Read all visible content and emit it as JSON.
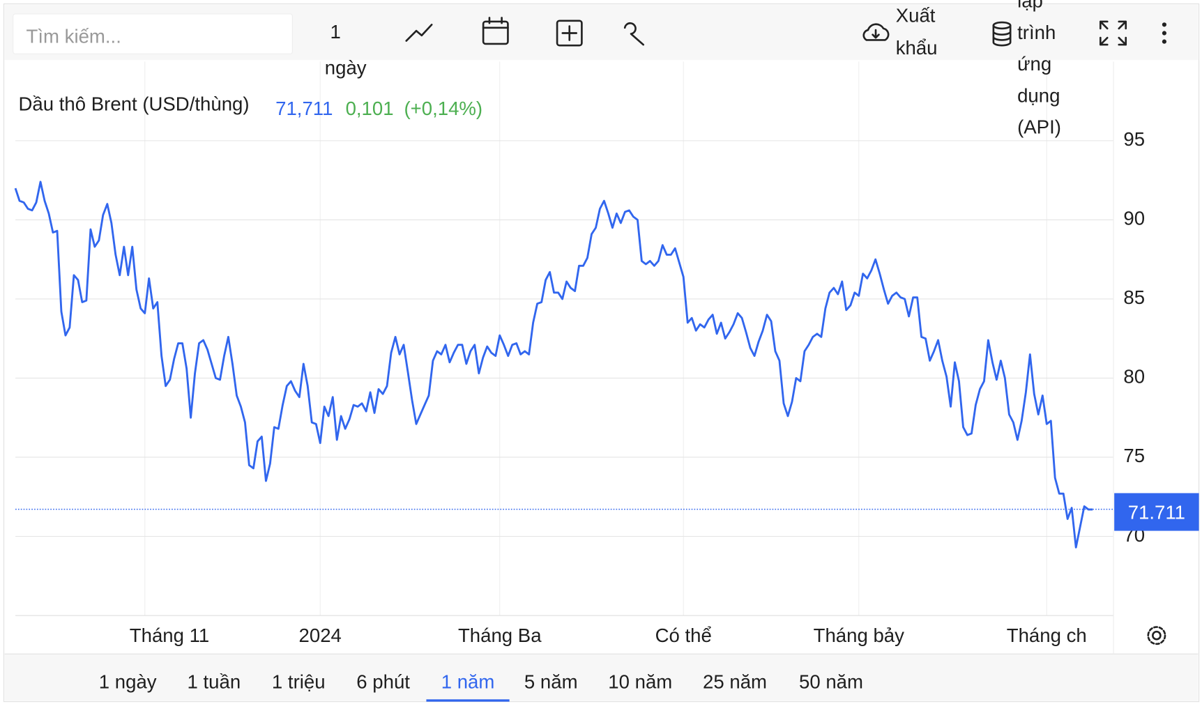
{
  "toolbar": {
    "search_placeholder": "Tìm kiếm...",
    "interval": [
      "1",
      "ngày"
    ],
    "export": [
      "Xuất",
      "khẩu"
    ],
    "api": [
      "lập",
      "trình",
      "ứng",
      "dụng",
      "(API)"
    ]
  },
  "chart_data": {
    "type": "line",
    "title": "Dầu thô Brent (USD/thùng)",
    "price": "71,711",
    "change": "0,101",
    "change_pct": "(+0,14%)",
    "color": "#3166ee",
    "values": [
      92.0,
      91.2,
      91.1,
      90.7,
      90.6,
      91.1,
      92.4,
      91.2,
      90.4,
      89.2,
      89.3,
      84.2,
      82.7,
      83.2,
      86.5,
      86.2,
      84.8,
      84.9,
      89.4,
      88.3,
      88.7,
      90.3,
      91.0,
      89.8,
      87.8,
      86.5,
      88.3,
      86.5,
      88.3,
      85.6,
      84.4,
      84.1,
      86.3,
      84.4,
      84.8,
      81.4,
      79.5,
      79.9,
      81.2,
      82.2,
      82.2,
      80.6,
      77.5,
      80.3,
      82.2,
      82.4,
      81.8,
      80.9,
      80.0,
      79.9,
      81.4,
      82.6,
      80.9,
      78.9,
      78.2,
      77.2,
      74.5,
      74.3,
      76.0,
      76.3,
      73.5,
      74.6,
      76.9,
      76.8,
      78.3,
      79.5,
      79.8,
      79.2,
      78.8,
      80.9,
      79.5,
      77.2,
      77.1,
      75.9,
      78.2,
      77.6,
      78.8,
      76.1,
      77.6,
      76.8,
      77.4,
      78.3,
      78.2,
      78.4,
      77.9,
      79.1,
      77.8,
      79.3,
      79.0,
      79.5,
      81.6,
      82.6,
      81.5,
      82.1,
      80.4,
      78.6,
      77.1,
      77.7,
      78.3,
      78.9,
      81.1,
      81.7,
      81.5,
      82.1,
      81.0,
      81.6,
      82.1,
      82.1,
      80.9,
      81.7,
      82.1,
      80.3,
      81.3,
      82.0,
      81.6,
      81.4,
      82.7,
      82.1,
      81.4,
      82.1,
      82.2,
      81.5,
      81.7,
      81.5,
      83.5,
      84.7,
      84.8,
      86.2,
      86.7,
      85.4,
      85.4,
      85.0,
      86.1,
      85.7,
      85.5,
      87.1,
      87.1,
      87.6,
      89.1,
      89.5,
      90.7,
      91.2,
      90.4,
      89.5,
      90.4,
      89.8,
      90.5,
      90.6,
      90.2,
      90.0,
      87.4,
      87.2,
      87.4,
      87.1,
      87.4,
      88.4,
      87.8,
      87.8,
      88.2,
      87.3,
      86.4,
      83.5,
      83.8,
      83.0,
      83.4,
      83.2,
      83.7,
      84.0,
      82.8,
      83.5,
      82.5,
      82.9,
      83.4,
      84.1,
      83.8,
      82.9,
      81.9,
      81.4,
      82.3,
      83.0,
      84.0,
      83.6,
      81.7,
      81.1,
      78.4,
      77.6,
      78.5,
      80.0,
      79.8,
      81.7,
      82.1,
      82.6,
      82.8,
      82.6,
      84.4,
      85.4,
      85.7,
      85.3,
      86.1,
      84.3,
      84.6,
      85.4,
      85.2,
      86.6,
      86.3,
      86.8,
      87.5,
      86.6,
      85.6,
      84.7,
      85.2,
      85.4,
      85.1,
      85.0,
      83.9,
      85.1,
      85.1,
      82.6,
      82.5,
      81.1,
      81.7,
      82.4,
      81.1,
      80.1,
      78.2,
      81.0,
      79.8,
      76.9,
      76.4,
      76.5,
      78.3,
      79.3,
      79.8,
      82.4,
      81.0,
      79.9,
      81.1,
      80.0,
      77.7,
      77.2,
      76.1,
      77.3,
      79.1,
      81.5,
      79.0,
      77.7,
      78.9,
      77.1,
      77.3,
      73.7,
      72.7,
      72.7,
      71.1,
      71.8,
      69.3,
      70.6,
      71.9,
      71.7,
      71.7
    ],
    "xlim": [
      0,
      263
    ],
    "xticks": [
      {
        "value": 31,
        "label": "Tháng 11"
      },
      {
        "value": 73,
        "label": "2024"
      },
      {
        "value": 116,
        "label": "Tháng Ba"
      },
      {
        "value": 160,
        "label": "Có thể"
      },
      {
        "value": 202,
        "label": "Tháng bảy"
      },
      {
        "value": 247,
        "label": "Tháng ch"
      }
    ],
    "ylim": [
      65,
      100
    ],
    "yticks": [
      70,
      75,
      80,
      85,
      90,
      95
    ],
    "grid": true,
    "last_price": {
      "value": 71.711,
      "label": "71.711"
    }
  },
  "ranges": [
    "1 ngày",
    "1 tuần",
    "1 triệu",
    "6 phút",
    "1 năm",
    "5 năm",
    "10 năm",
    "25 năm",
    "50 năm"
  ],
  "active_range": 4
}
